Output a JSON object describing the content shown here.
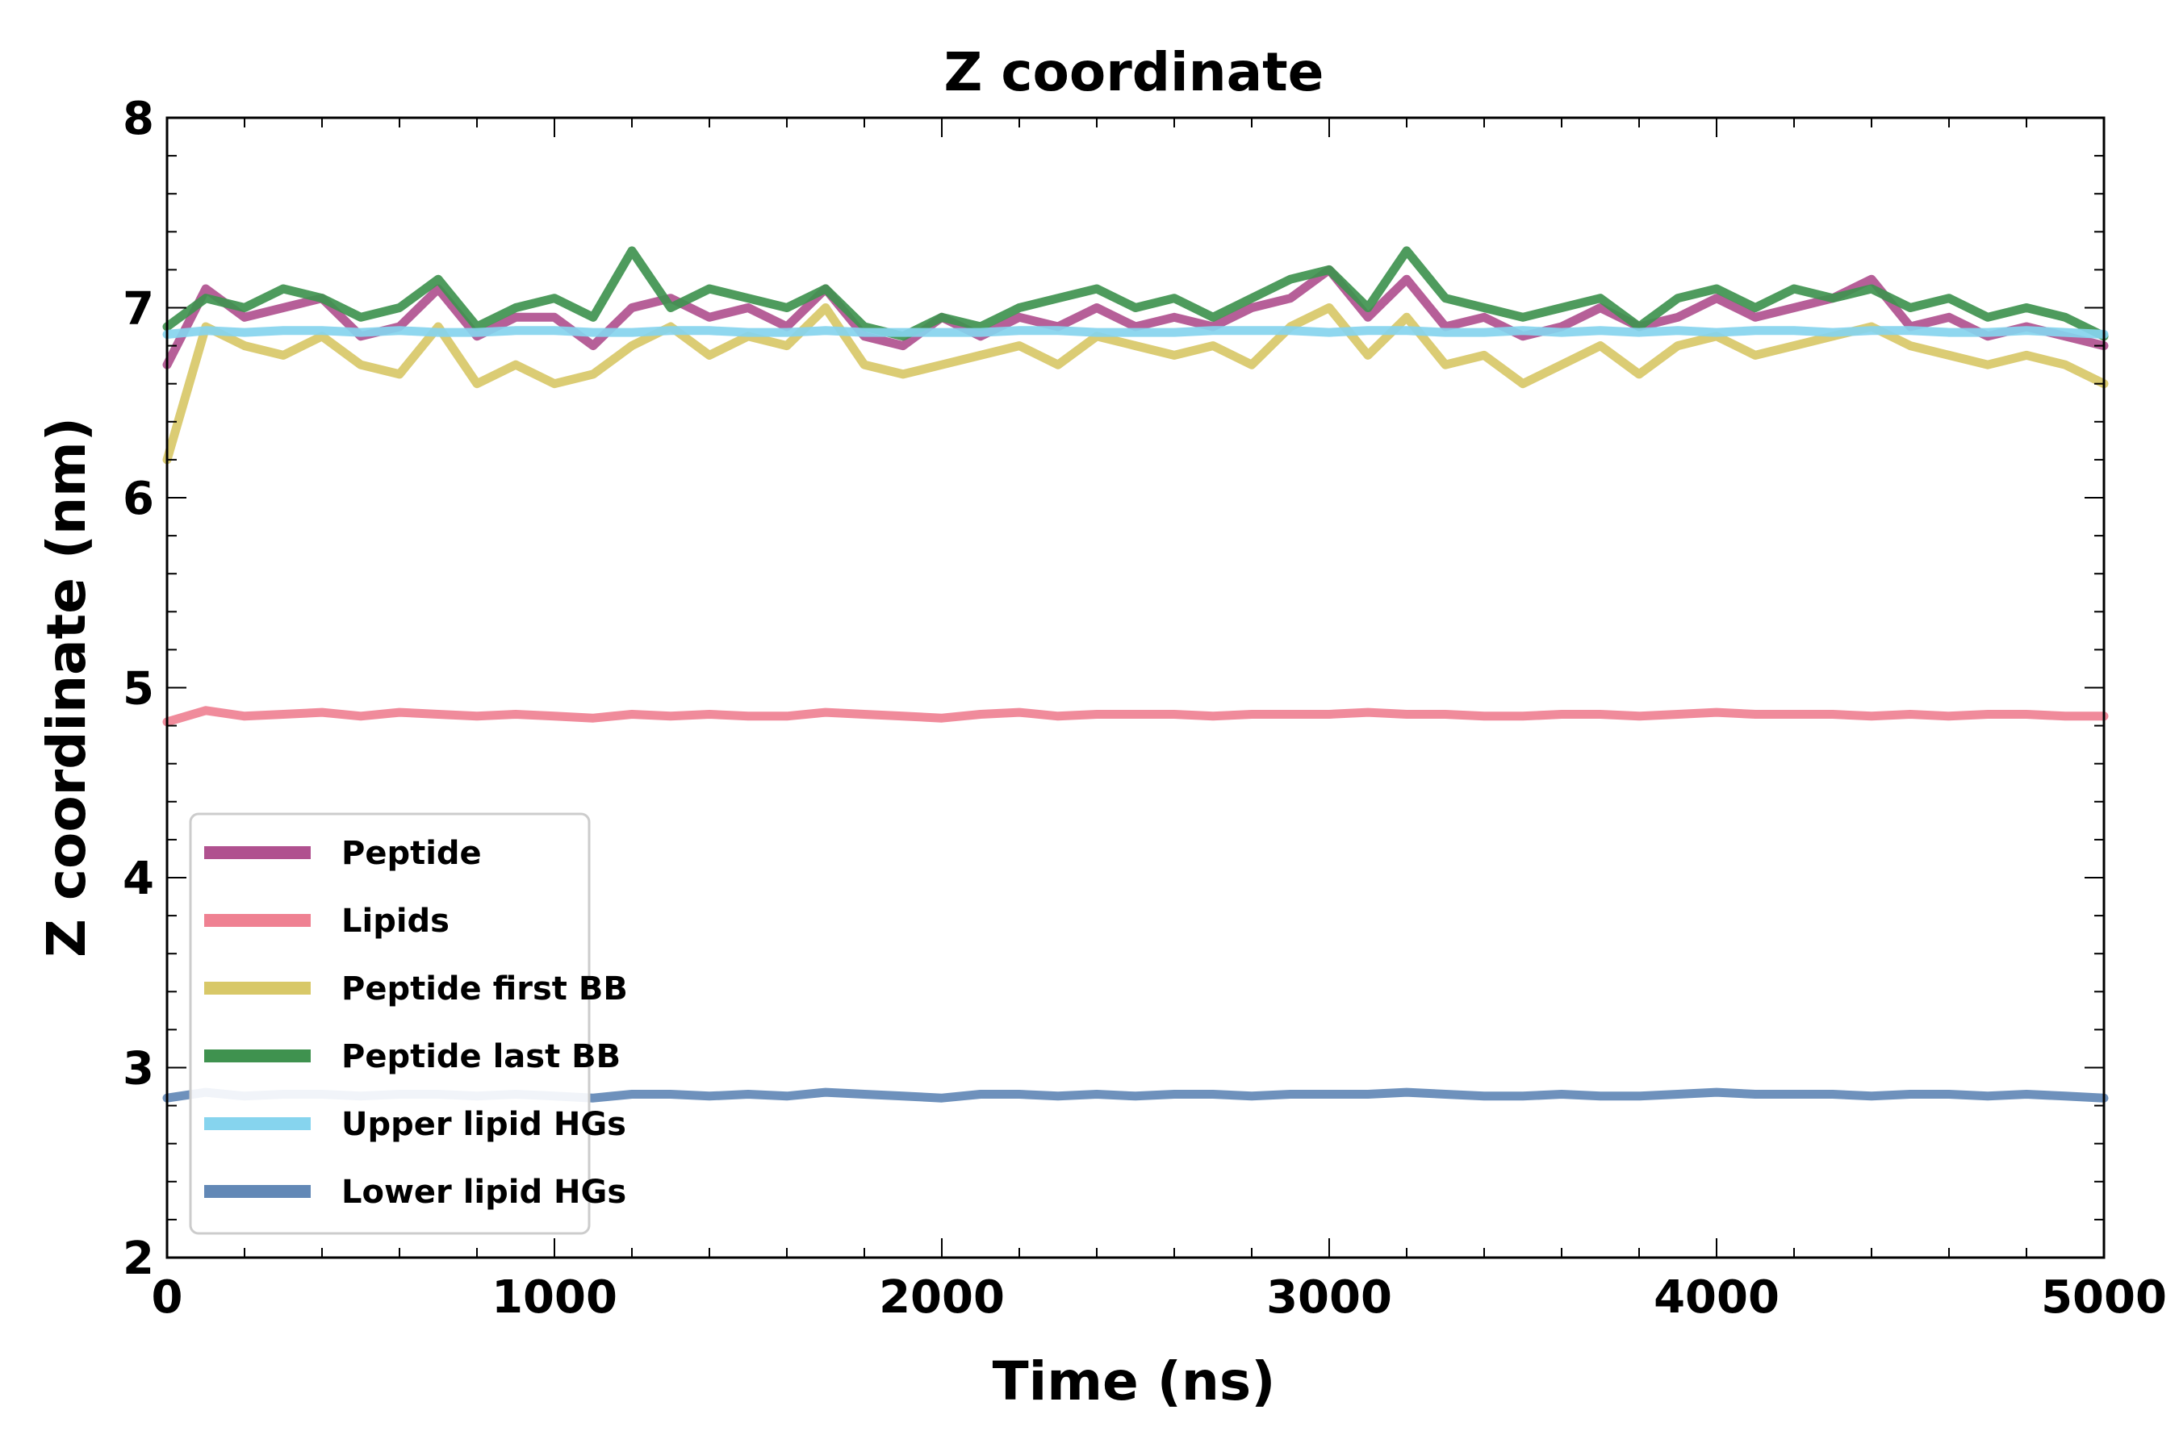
{
  "chart_data": {
    "type": "line",
    "title": "Z coordinate",
    "xlabel": "Time (ns)",
    "ylabel": "Z coordinate (nm)",
    "xlim": [
      0,
      5000
    ],
    "ylim": [
      2,
      8
    ],
    "xticks": [
      0,
      1000,
      2000,
      3000,
      4000,
      5000
    ],
    "yticks": [
      2,
      3,
      4,
      5,
      6,
      7,
      8
    ],
    "grid": false,
    "legend_position": "lower-left",
    "x": [
      0,
      100,
      200,
      300,
      400,
      500,
      600,
      700,
      800,
      900,
      1000,
      1100,
      1200,
      1300,
      1400,
      1500,
      1600,
      1700,
      1800,
      1900,
      2000,
      2100,
      2200,
      2300,
      2400,
      2500,
      2600,
      2700,
      2800,
      2900,
      3000,
      3100,
      3200,
      3300,
      3400,
      3500,
      3600,
      3700,
      3800,
      3900,
      4000,
      4100,
      4200,
      4300,
      4400,
      4500,
      4600,
      4700,
      4800,
      4900,
      5000
    ],
    "series": [
      {
        "name": "Peptide",
        "color": "#b0518f",
        "values": [
          6.7,
          7.1,
          6.95,
          7.0,
          7.05,
          6.85,
          6.9,
          7.1,
          6.85,
          6.95,
          6.95,
          6.8,
          7.0,
          7.05,
          6.95,
          7.0,
          6.9,
          7.1,
          6.85,
          6.8,
          6.95,
          6.85,
          6.95,
          6.9,
          7.0,
          6.9,
          6.95,
          6.9,
          7.0,
          7.05,
          7.2,
          6.95,
          7.15,
          6.9,
          6.95,
          6.85,
          6.9,
          7.0,
          6.9,
          6.95,
          7.05,
          6.95,
          7.0,
          7.05,
          7.15,
          6.9,
          6.95,
          6.85,
          6.9,
          6.85,
          6.8
        ]
      },
      {
        "name": "Lipids",
        "color": "#ef8192",
        "values": [
          4.82,
          4.88,
          4.85,
          4.86,
          4.87,
          4.85,
          4.87,
          4.86,
          4.85,
          4.86,
          4.85,
          4.84,
          4.86,
          4.85,
          4.86,
          4.85,
          4.85,
          4.87,
          4.86,
          4.85,
          4.84,
          4.86,
          4.87,
          4.85,
          4.86,
          4.86,
          4.86,
          4.85,
          4.86,
          4.86,
          4.86,
          4.87,
          4.86,
          4.86,
          4.85,
          4.85,
          4.86,
          4.86,
          4.85,
          4.86,
          4.87,
          4.86,
          4.86,
          4.86,
          4.85,
          4.86,
          4.85,
          4.86,
          4.86,
          4.85,
          4.85
        ]
      },
      {
        "name": "Peptide first BB",
        "color": "#d8c868",
        "values": [
          6.2,
          6.9,
          6.8,
          6.75,
          6.85,
          6.7,
          6.65,
          6.9,
          6.6,
          6.7,
          6.6,
          6.65,
          6.8,
          6.9,
          6.75,
          6.85,
          6.8,
          7.0,
          6.7,
          6.65,
          6.7,
          6.75,
          6.8,
          6.7,
          6.85,
          6.8,
          6.75,
          6.8,
          6.7,
          6.9,
          7.0,
          6.75,
          6.95,
          6.7,
          6.75,
          6.6,
          6.7,
          6.8,
          6.65,
          6.8,
          6.85,
          6.75,
          6.8,
          6.85,
          6.9,
          6.8,
          6.75,
          6.7,
          6.75,
          6.7,
          6.6
        ]
      },
      {
        "name": "Peptide last BB",
        "color": "#3f924f",
        "values": [
          6.9,
          7.05,
          7.0,
          7.1,
          7.05,
          6.95,
          7.0,
          7.15,
          6.9,
          7.0,
          7.05,
          6.95,
          7.3,
          7.0,
          7.1,
          7.05,
          7.0,
          7.1,
          6.9,
          6.85,
          6.95,
          6.9,
          7.0,
          7.05,
          7.1,
          7.0,
          7.05,
          6.95,
          7.05,
          7.15,
          7.2,
          7.0,
          7.3,
          7.05,
          7.0,
          6.95,
          7.0,
          7.05,
          6.9,
          7.05,
          7.1,
          7.0,
          7.1,
          7.05,
          7.1,
          7.0,
          7.05,
          6.95,
          7.0,
          6.95,
          6.85
        ]
      },
      {
        "name": "Upper lipid HGs",
        "color": "#86d4ee",
        "values": [
          6.86,
          6.88,
          6.87,
          6.88,
          6.88,
          6.87,
          6.88,
          6.87,
          6.87,
          6.88,
          6.88,
          6.87,
          6.87,
          6.88,
          6.88,
          6.87,
          6.87,
          6.88,
          6.87,
          6.87,
          6.87,
          6.87,
          6.88,
          6.88,
          6.87,
          6.87,
          6.87,
          6.88,
          6.88,
          6.88,
          6.87,
          6.88,
          6.88,
          6.87,
          6.87,
          6.88,
          6.87,
          6.88,
          6.87,
          6.88,
          6.87,
          6.88,
          6.88,
          6.87,
          6.88,
          6.88,
          6.87,
          6.87,
          6.88,
          6.87,
          6.86
        ]
      },
      {
        "name": "Lower lipid HGs",
        "color": "#6288b6",
        "values": [
          2.84,
          2.87,
          2.85,
          2.86,
          2.86,
          2.85,
          2.86,
          2.86,
          2.85,
          2.86,
          2.85,
          2.84,
          2.86,
          2.86,
          2.85,
          2.86,
          2.85,
          2.87,
          2.86,
          2.85,
          2.84,
          2.86,
          2.86,
          2.85,
          2.86,
          2.85,
          2.86,
          2.86,
          2.85,
          2.86,
          2.86,
          2.86,
          2.87,
          2.86,
          2.85,
          2.85,
          2.86,
          2.85,
          2.85,
          2.86,
          2.87,
          2.86,
          2.86,
          2.86,
          2.85,
          2.86,
          2.86,
          2.85,
          2.86,
          2.85,
          2.84
        ]
      }
    ]
  }
}
